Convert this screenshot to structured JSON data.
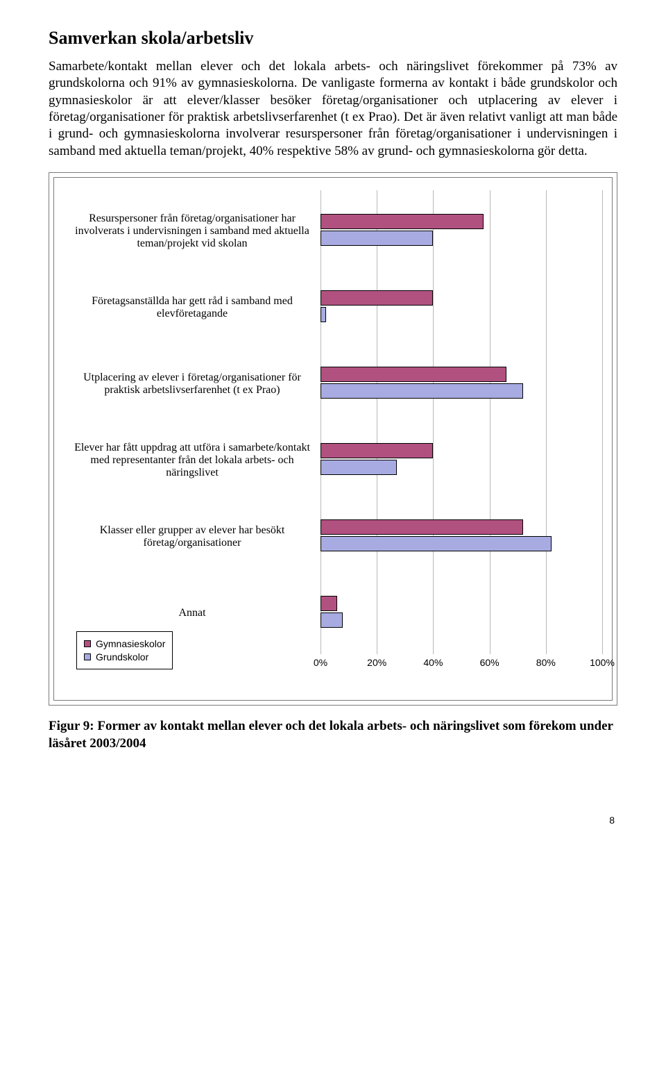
{
  "heading": "Samverkan skola/arbetsliv",
  "paragraph": "Samarbete/kontakt mellan elever och det lokala arbets- och näringslivet förekommer på 73% av grundskolorna och 91% av gymnasieskolorna. De vanligaste formerna av kontakt i både grundskolor och gymnasieskolor är att elever/klasser besöker företag/organisationer och utplacering av elever i företag/organisationer för praktisk arbetslivserfarenhet (t ex Prao). Det är även relativt vanligt att man både i grund- och gymnasieskolorna involverar resurspersoner från företag/organisationer i undervisningen i samband med aktuella teman/projekt, 40% respektive 58% av grund- och gymnasieskolorna gör detta.",
  "chart": {
    "type": "bar-horizontal-grouped",
    "series_colors": {
      "gymnasium": "#b15180",
      "grund": "#a7abe1"
    },
    "grid_color": "#b8b8b8",
    "xmax": 100,
    "xtick_step": 20,
    "xticks": [
      "0%",
      "20%",
      "40%",
      "60%",
      "80%",
      "100%"
    ],
    "items": [
      {
        "label": "Resurspersoner från företag/organisationer har involverats i undervisningen i samband med aktuella teman/projekt vid skolan",
        "gymnasium": 58,
        "grund": 40
      },
      {
        "label": "Företagsanställda har gett råd i samband med elevföretagande",
        "gymnasium": 40,
        "grund": 2
      },
      {
        "label": "Utplacering av elever i företag/organisationer för praktisk arbetslivserfarenhet (t ex Prao)",
        "gymnasium": 66,
        "grund": 72
      },
      {
        "label": "Elever har fått uppdrag att utföra i samarbete/kontakt med representanter från det lokala arbets- och näringslivet",
        "gymnasium": 40,
        "grund": 27
      },
      {
        "label": "Klasser eller grupper av elever har besökt företag/organisationer",
        "gymnasium": 72,
        "grund": 82
      },
      {
        "label": "Annat",
        "gymnasium": 6,
        "grund": 8
      }
    ],
    "legend": {
      "gymnasium": "Gymnasieskolor",
      "grund": "Grundskolor"
    }
  },
  "caption": "Figur 9: Former av kontakt mellan elever och det lokala arbets- och näringslivet som förekom under läsåret 2003/2004",
  "page_number": "8"
}
